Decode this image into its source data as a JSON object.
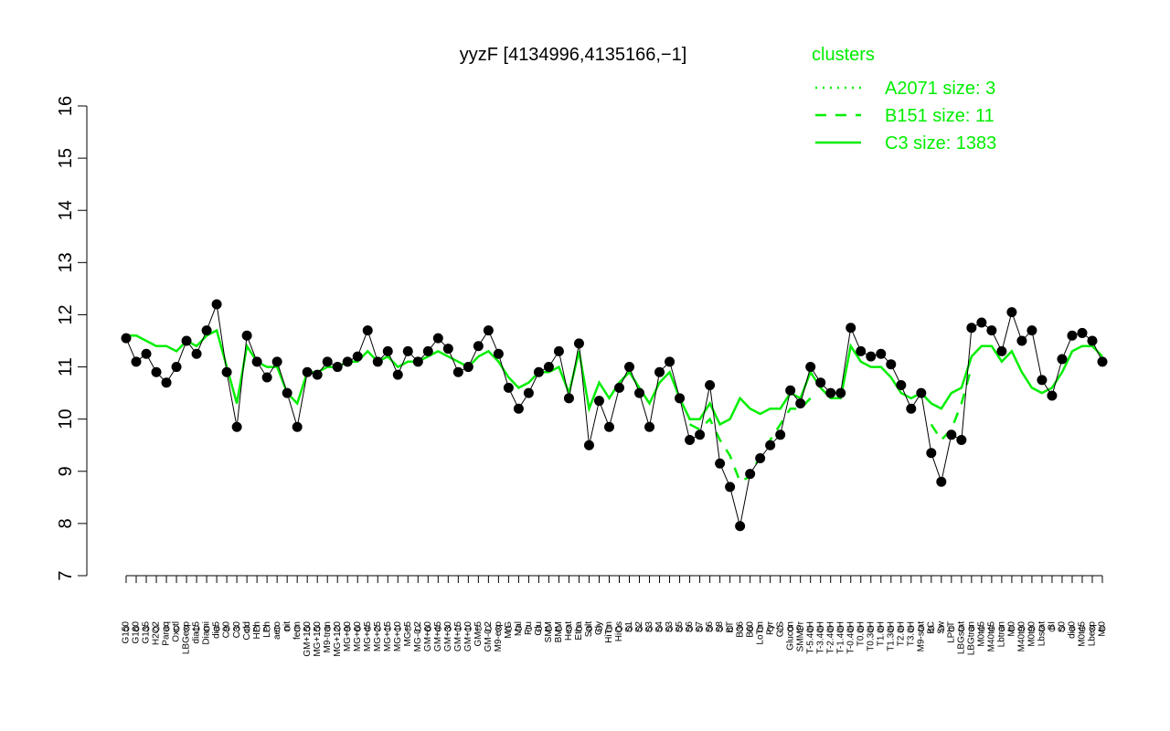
{
  "chart_data": {
    "type": "line",
    "title": "yyzF [4134996,4135166,−1]",
    "legend_title": "clusters",
    "categories": [
      "G150",
      "G180",
      "G135",
      "H2O2",
      "Paraq",
      "Oxctl",
      "LBGexp",
      "dia15",
      "Diami",
      "dia5",
      "C90",
      "C30",
      "Cold",
      "HPh",
      "LPh",
      "aero",
      "nit",
      "ferm",
      "GM+150",
      "MG+150",
      "M9-tran",
      "MG+120",
      "MG+90",
      "MG+60",
      "MG+45",
      "MG+25",
      "MG+15",
      "MG+10",
      "MG+5",
      "MG-0.2",
      "GM+60",
      "GM+45",
      "GM+30",
      "GM+15",
      "GM+10",
      "GM+5",
      "GM-0.2",
      "M9-exp",
      "M/G",
      "Mal",
      "Fru",
      "Glu",
      "SMM",
      "BMM",
      "Heat",
      "Etha",
      "Salt",
      "Gly",
      "HiTm",
      "HiOs",
      "S1",
      "S2",
      "S3",
      "S4",
      "S3",
      "S5",
      "S6",
      "S7",
      "S6",
      "S8",
      "BT",
      "B36",
      "B60",
      "LoTm",
      "Pyr",
      "G/S",
      "Glucon",
      "SMMPr",
      "T-5.40H",
      "T-3.40H",
      "T-2.40H",
      "T-1.40H",
      "T-0.40H",
      "T0.0H",
      "T0.30H",
      "T1.0H",
      "T1.30H",
      "T2.0H",
      "T3.0H",
      "M9-stat",
      "BC",
      "Sw",
      "LPhT",
      "LBGstat",
      "LBGtran",
      "M0t45",
      "M40t45",
      "Lbtran",
      "Mt0",
      "M40t90",
      "M0t90",
      "Lbstat",
      "BI",
      "S0",
      "dia0",
      "M0t45",
      "Lbexp",
      "Mt0"
    ],
    "values": [
      11.55,
      11.1,
      11.25,
      10.9,
      10.7,
      11.0,
      11.5,
      11.25,
      11.7,
      12.2,
      10.9,
      9.85,
      11.6,
      11.1,
      10.8,
      11.1,
      10.5,
      9.85,
      10.9,
      10.85,
      11.1,
      11.0,
      11.1,
      11.2,
      11.7,
      11.1,
      11.3,
      10.85,
      11.3,
      11.1,
      11.3,
      11.55,
      11.35,
      10.9,
      11.0,
      11.4,
      11.7,
      11.25,
      10.6,
      10.2,
      10.5,
      10.9,
      11.0,
      11.3,
      10.4,
      11.45,
      9.5,
      10.35,
      9.85,
      10.6,
      11.0,
      10.5,
      9.85,
      10.9,
      11.1,
      10.4,
      9.6,
      9.7,
      10.65,
      9.15,
      8.7,
      7.95,
      8.95,
      9.25,
      9.5,
      9.7,
      10.55,
      10.3,
      11.0,
      10.7,
      10.5,
      10.5,
      11.75,
      11.3,
      11.2,
      11.25,
      11.05,
      10.65,
      10.2,
      10.5,
      9.35,
      8.8,
      9.7,
      9.6,
      11.75,
      11.85,
      11.7,
      11.3,
      12.05,
      11.5,
      11.7,
      10.75,
      10.45,
      11.15,
      11.6,
      11.65,
      11.5,
      11.1
    ],
    "point_color": "#000000",
    "series": [
      {
        "name": "A2071 size: 3",
        "color": "#00ee00",
        "dash": "dotted",
        "values": [
          null,
          null,
          null,
          null,
          null,
          null,
          null,
          null,
          null,
          null,
          null,
          null,
          null,
          null,
          null,
          null,
          null,
          null,
          null,
          null,
          null,
          null,
          null,
          null,
          null,
          null,
          null,
          null,
          null,
          null,
          null,
          null,
          null,
          null,
          null,
          null,
          null,
          null,
          null,
          null,
          null,
          null,
          null,
          null,
          null,
          null,
          null,
          null,
          null,
          null,
          null,
          null,
          null,
          null,
          null,
          null,
          null,
          null,
          null,
          null,
          null,
          null,
          null,
          null,
          null,
          null,
          null,
          null,
          null,
          null,
          null,
          null,
          null,
          null,
          null,
          null,
          null,
          null,
          null,
          null,
          null,
          null,
          null,
          null,
          null,
          null,
          null,
          null,
          null,
          null,
          null,
          null,
          null,
          null,
          null,
          null,
          null,
          null
        ]
      },
      {
        "name": "B151 size: 11",
        "color": "#00ee00",
        "dash": "dashed",
        "values": [
          null,
          null,
          null,
          null,
          null,
          null,
          null,
          null,
          null,
          null,
          null,
          null,
          null,
          null,
          null,
          null,
          null,
          null,
          null,
          null,
          null,
          null,
          null,
          null,
          null,
          null,
          null,
          null,
          null,
          null,
          null,
          null,
          null,
          null,
          null,
          null,
          null,
          null,
          null,
          null,
          null,
          null,
          null,
          null,
          null,
          null,
          null,
          null,
          null,
          null,
          null,
          null,
          null,
          null,
          null,
          null,
          9.9,
          9.8,
          10.0,
          9.6,
          9.3,
          8.8,
          8.9,
          9.3,
          9.6,
          9.9,
          10.2,
          10.2,
          10.4,
          null,
          null,
          null,
          null,
          null,
          null,
          null,
          null,
          null,
          null,
          null,
          9.9,
          9.6,
          9.8,
          10.3,
          11.0,
          null,
          null,
          null,
          null,
          null,
          null,
          null,
          null,
          null,
          null,
          null,
          null,
          null
        ]
      },
      {
        "name": "C3 size: 1383",
        "color": "#00ee00",
        "dash": "solid",
        "values": [
          11.6,
          11.6,
          11.5,
          11.4,
          11.4,
          11.3,
          11.5,
          11.4,
          11.6,
          11.7,
          11.0,
          10.3,
          11.4,
          11.1,
          11.0,
          11.0,
          10.5,
          10.3,
          10.9,
          10.9,
          11.0,
          11.0,
          11.1,
          11.1,
          11.3,
          11.1,
          11.2,
          11.0,
          11.1,
          11.1,
          11.2,
          11.3,
          11.2,
          11.1,
          11.0,
          11.2,
          11.3,
          11.1,
          10.8,
          10.6,
          10.7,
          10.9,
          10.9,
          11.0,
          10.5,
          11.3,
          10.2,
          10.7,
          10.4,
          10.7,
          10.9,
          10.6,
          10.3,
          10.7,
          10.9,
          10.4,
          10.0,
          10.0,
          10.3,
          9.9,
          10.0,
          10.4,
          10.2,
          10.1,
          10.2,
          10.2,
          10.5,
          10.4,
          10.9,
          10.6,
          10.4,
          10.4,
          11.4,
          11.1,
          11.0,
          11.0,
          10.8,
          10.5,
          10.4,
          10.5,
          10.3,
          10.2,
          10.5,
          10.6,
          11.2,
          11.4,
          11.4,
          11.1,
          11.3,
          10.9,
          10.6,
          10.5,
          10.6,
          10.9,
          11.3,
          11.4,
          11.4,
          11.2
        ]
      }
    ],
    "ylim": [
      7,
      16
    ],
    "yticks": [
      7,
      8,
      9,
      10,
      11,
      12,
      13,
      14,
      15,
      16
    ]
  }
}
